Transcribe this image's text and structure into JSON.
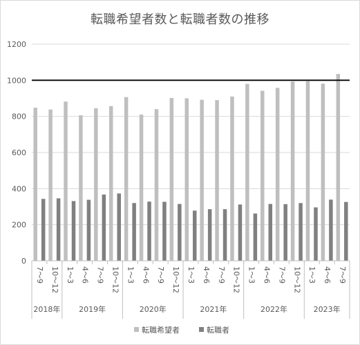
{
  "chart_data": {
    "type": "bar",
    "title": "転職希望者数と転職者数の推移",
    "categories": [
      "7～9",
      "10～12",
      "1～3",
      "4～6",
      "7～9",
      "10～12",
      "1～3",
      "4～6",
      "7～9",
      "10～12",
      "1～3",
      "4～6",
      "7～9",
      "10～12",
      "1～3",
      "4～6",
      "7～9",
      "10～12",
      "1～3",
      "4～6",
      "7～9"
    ],
    "year_groups": [
      {
        "label": "2018年",
        "count": 2
      },
      {
        "label": "2019年",
        "count": 4
      },
      {
        "label": "2020年",
        "count": 4
      },
      {
        "label": "2021年",
        "count": 4
      },
      {
        "label": "2022年",
        "count": 4
      },
      {
        "label": "2023年",
        "count": 3
      }
    ],
    "series": [
      {
        "name": "転職希望者",
        "color": "#bfbfbf",
        "values": [
          848,
          838,
          882,
          806,
          845,
          857,
          907,
          810,
          840,
          902,
          900,
          892,
          890,
          910,
          980,
          942,
          958,
          993,
          995,
          981,
          1035
        ]
      },
      {
        "name": "転職者",
        "color": "#808080",
        "values": [
          343,
          346,
          331,
          338,
          367,
          373,
          320,
          328,
          327,
          315,
          278,
          286,
          286,
          312,
          262,
          315,
          314,
          320,
          296,
          339,
          326
        ]
      }
    ],
    "ylim": [
      0,
      1200
    ],
    "yticks": [
      0,
      200,
      400,
      600,
      800,
      1000,
      1200
    ],
    "reference_line": 1000,
    "grid": true,
    "legend_position": "bottom"
  }
}
